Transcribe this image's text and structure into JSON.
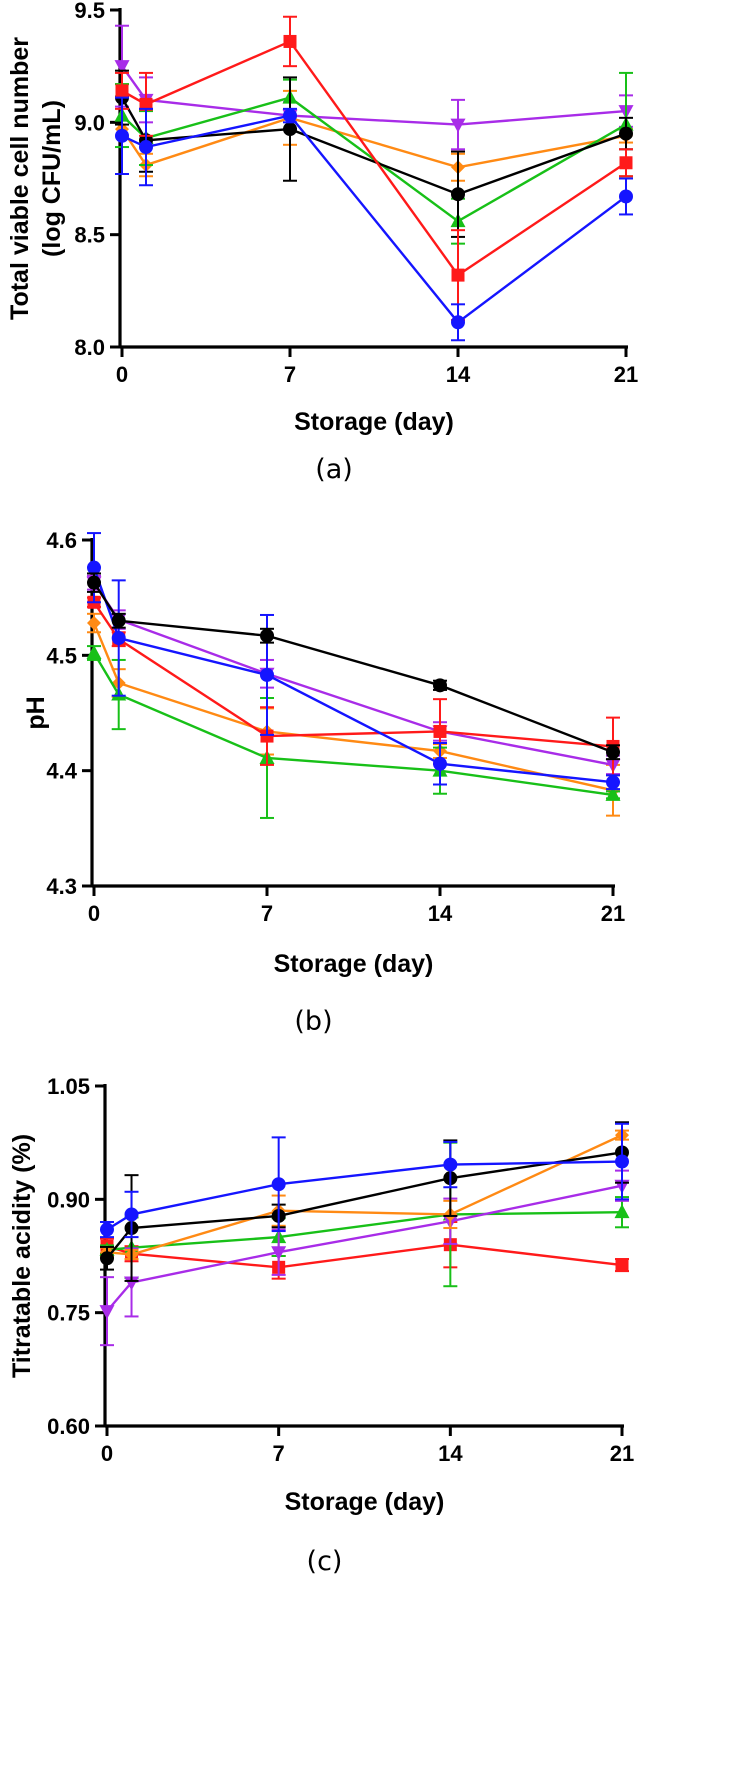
{
  "colors": {
    "black": "#000000",
    "red": "#ff1a1a",
    "green": "#18c018",
    "blue": "#1515ff",
    "purple": "#a82ce8",
    "orange": "#ff8a14"
  },
  "chart_data": [
    {
      "type": "line",
      "panel": "(a)",
      "xlabel": "Storage (day)",
      "ylabel_lines": [
        "Total viable cell number",
        "(log CFU/mL)"
      ],
      "x": [
        0,
        1,
        7,
        14,
        21
      ],
      "xticks": [
        0,
        7,
        14,
        21
      ],
      "xtick_labels": [
        "0",
        "7",
        "14",
        "21"
      ],
      "ylim": [
        8.0,
        9.5
      ],
      "yticks": [
        8.0,
        8.5,
        9.0,
        9.5
      ],
      "ytick_labels": [
        "8.0",
        "8.5",
        "9.0",
        "9.5"
      ],
      "series": [
        {
          "color": "orange",
          "marker": "diamond",
          "values": [
            8.97,
            8.81,
            9.02,
            8.8,
            8.94
          ],
          "errors": [
            0.2,
            0.05,
            0.12,
            0.06,
            0.03
          ]
        },
        {
          "color": "purple",
          "marker": "triangle-down",
          "values": [
            9.25,
            9.1,
            9.03,
            8.99,
            9.05
          ],
          "errors": [
            0.18,
            0.1,
            0.06,
            0.11,
            0.07
          ]
        },
        {
          "color": "green",
          "marker": "triangle-up",
          "values": [
            9.03,
            8.93,
            9.11,
            8.56,
            8.99
          ],
          "errors": [
            0.14,
            0.12,
            0.08,
            0.1,
            0.23
          ]
        },
        {
          "color": "black",
          "marker": "circle",
          "values": [
            9.11,
            8.92,
            8.97,
            8.68,
            8.95
          ],
          "errors": [
            0.12,
            0.14,
            0.23,
            0.19,
            0.07
          ]
        },
        {
          "color": "red",
          "marker": "square",
          "values": [
            9.14,
            9.08,
            9.36,
            8.32,
            8.82
          ],
          "errors": [
            0.08,
            0.14,
            0.11,
            0.2,
            0.06
          ]
        },
        {
          "color": "blue",
          "marker": "circle",
          "values": [
            8.94,
            8.89,
            9.03,
            8.11,
            8.67
          ],
          "errors": [
            0.17,
            0.17,
            0.03,
            0.08,
            0.08
          ]
        }
      ]
    },
    {
      "type": "line",
      "panel": "(b)",
      "xlabel": "Storage (day)",
      "ylabel_lines": [
        "pH"
      ],
      "x": [
        0,
        1,
        7,
        14,
        21
      ],
      "xticks": [
        0,
        7,
        14,
        21
      ],
      "xtick_labels": [
        "0",
        "7",
        "14",
        "21"
      ],
      "ylim": [
        4.3,
        4.6
      ],
      "yticks": [
        4.3,
        4.4,
        4.5,
        4.6
      ],
      "ytick_labels": [
        "4.3",
        "4.4",
        "4.5",
        "4.6"
      ],
      "series": [
        {
          "color": "orange",
          "marker": "diamond",
          "values": [
            4.528,
            4.476,
            4.434,
            4.417,
            4.383
          ],
          "errors": [
            0.008,
            0.012,
            0.02,
            0.006,
            0.022
          ]
        },
        {
          "color": "green",
          "marker": "triangle-up",
          "values": [
            4.502,
            4.466,
            4.411,
            4.4,
            4.379
          ],
          "errors": [
            0.006,
            0.03,
            0.052,
            0.02,
            0.003
          ]
        },
        {
          "color": "purple",
          "marker": "triangle-down",
          "values": [
            4.563,
            4.531,
            4.484,
            4.434,
            4.405
          ],
          "errors": [
            0.006,
            0.008,
            0.012,
            0.008,
            0.008
          ]
        },
        {
          "color": "red",
          "marker": "square",
          "values": [
            4.546,
            4.514,
            4.43,
            4.434,
            4.421
          ],
          "errors": [
            0.004,
            0.006,
            0.025,
            0.028,
            0.025
          ]
        },
        {
          "color": "blue",
          "marker": "circle",
          "values": [
            4.576,
            4.515,
            4.483,
            4.406,
            4.39
          ],
          "errors": [
            0.03,
            0.05,
            0.052,
            0.018,
            0.006
          ]
        },
        {
          "color": "black",
          "marker": "circle",
          "values": [
            4.563,
            4.53,
            4.517,
            4.474,
            4.416
          ],
          "errors": [
            0.008,
            0.006,
            0.006,
            0.004,
            0.006
          ]
        }
      ]
    },
    {
      "type": "line",
      "panel": "(c)",
      "xlabel": "Storage (day)",
      "ylabel_lines": [
        "Titratable acidity (%)"
      ],
      "x": [
        0,
        1,
        7,
        14,
        21
      ],
      "xticks": [
        0,
        7,
        14,
        21
      ],
      "xtick_labels": [
        "0",
        "7",
        "14",
        "21"
      ],
      "ylim": [
        0.6,
        1.05
      ],
      "yticks": [
        0.6,
        0.75,
        0.9,
        1.05
      ],
      "ytick_labels": [
        "0.60",
        "0.75",
        "0.90",
        "1.05"
      ],
      "series": [
        {
          "color": "red",
          "marker": "square",
          "values": [
            0.838,
            0.828,
            0.81,
            0.84,
            0.813
          ],
          "errors": [
            0.01,
            0.01,
            0.015,
            0.03,
            0.008
          ]
        },
        {
          "color": "green",
          "marker": "triangle-up",
          "values": [
            0.833,
            0.836,
            0.85,
            0.88,
            0.883
          ],
          "errors": [
            0.006,
            0.04,
            0.025,
            0.095,
            0.02
          ]
        },
        {
          "color": "purple",
          "marker": "triangle-down",
          "values": [
            0.752,
            0.79,
            0.83,
            0.871,
            0.918
          ],
          "errors": [
            0.045,
            0.045,
            0.03,
            0.03,
            0.02
          ]
        },
        {
          "color": "orange",
          "marker": "diamond",
          "values": [
            0.83,
            0.827,
            0.885,
            0.88,
            0.985
          ],
          "errors": [
            0.006,
            0.006,
            0.02,
            0.018,
            0.006
          ]
        },
        {
          "color": "black",
          "marker": "circle",
          "values": [
            0.822,
            0.862,
            0.878,
            0.928,
            0.962
          ],
          "errors": [
            0.015,
            0.07,
            0.015,
            0.05,
            0.04
          ]
        },
        {
          "color": "blue",
          "marker": "circle",
          "values": [
            0.86,
            0.88,
            0.92,
            0.946,
            0.95
          ],
          "errors": [
            0.01,
            0.03,
            0.062,
            0.03,
            0.05
          ]
        }
      ]
    }
  ]
}
